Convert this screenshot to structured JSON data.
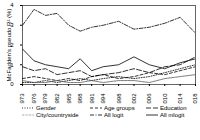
{
  "chart_data": {
    "type": "line",
    "y_label": "McFadden's pseudo R² (%)",
    "x": [
      1973,
      1976,
      1979,
      1982,
      1985,
      1988,
      1991,
      1994,
      1998,
      2002,
      2006,
      2010,
      2014,
      2018
    ],
    "xlim": [
      1973,
      2018
    ],
    "xticks": [
      1973,
      1976,
      1979,
      1982,
      1985,
      1988,
      1991,
      1994,
      1998,
      2002,
      2006,
      2010,
      2014,
      2018
    ],
    "ylim": [
      0,
      4
    ],
    "yticks": [
      0,
      1,
      2,
      3,
      4
    ],
    "legend": "bottom",
    "series": [
      {
        "name": "Gender",
        "color": "#000000",
        "line_style": "dotted",
        "values": [
          0.1,
          0.1,
          0.2,
          0.1,
          0.2,
          0.3,
          0.2,
          0.3,
          0.4,
          0.3,
          0.4,
          0.6,
          0.8,
          1.0
        ]
      },
      {
        "name": "Age groups",
        "color": "#000000",
        "line_style": "dashed",
        "values": [
          0.3,
          0.4,
          0.3,
          0.2,
          0.3,
          0.2,
          0.4,
          0.5,
          0.3,
          0.4,
          0.6,
          0.5,
          0.7,
          0.9
        ]
      },
      {
        "name": "Education",
        "color": "#000000",
        "line_style": "longdash",
        "values": [
          0.9,
          0.7,
          0.8,
          0.5,
          0.6,
          0.7,
          0.4,
          0.5,
          0.6,
          0.8,
          0.6,
          0.9,
          1.0,
          1.4
        ]
      },
      {
        "name": "City/countryside",
        "color": "#555555",
        "line_style": "densedotted",
        "values": [
          0.2,
          0.1,
          0.1,
          0.2,
          0.1,
          0.1,
          0.2,
          0.1,
          0.2,
          0.2,
          0.1,
          0.3,
          0.4,
          0.5
        ]
      },
      {
        "name": "All logit",
        "color": "#000000",
        "line_style": "dashdot",
        "values": [
          3.0,
          3.8,
          3.5,
          3.6,
          3.0,
          2.7,
          2.9,
          3.0,
          3.2,
          2.8,
          2.9,
          3.1,
          3.4,
          2.6
        ]
      },
      {
        "name": "All mlogit",
        "color": "#000000",
        "line_style": "solid",
        "values": [
          1.8,
          1.2,
          1.0,
          0.9,
          0.8,
          1.3,
          0.7,
          0.9,
          1.0,
          1.4,
          1.0,
          0.8,
          1.1,
          1.3
        ]
      }
    ]
  }
}
